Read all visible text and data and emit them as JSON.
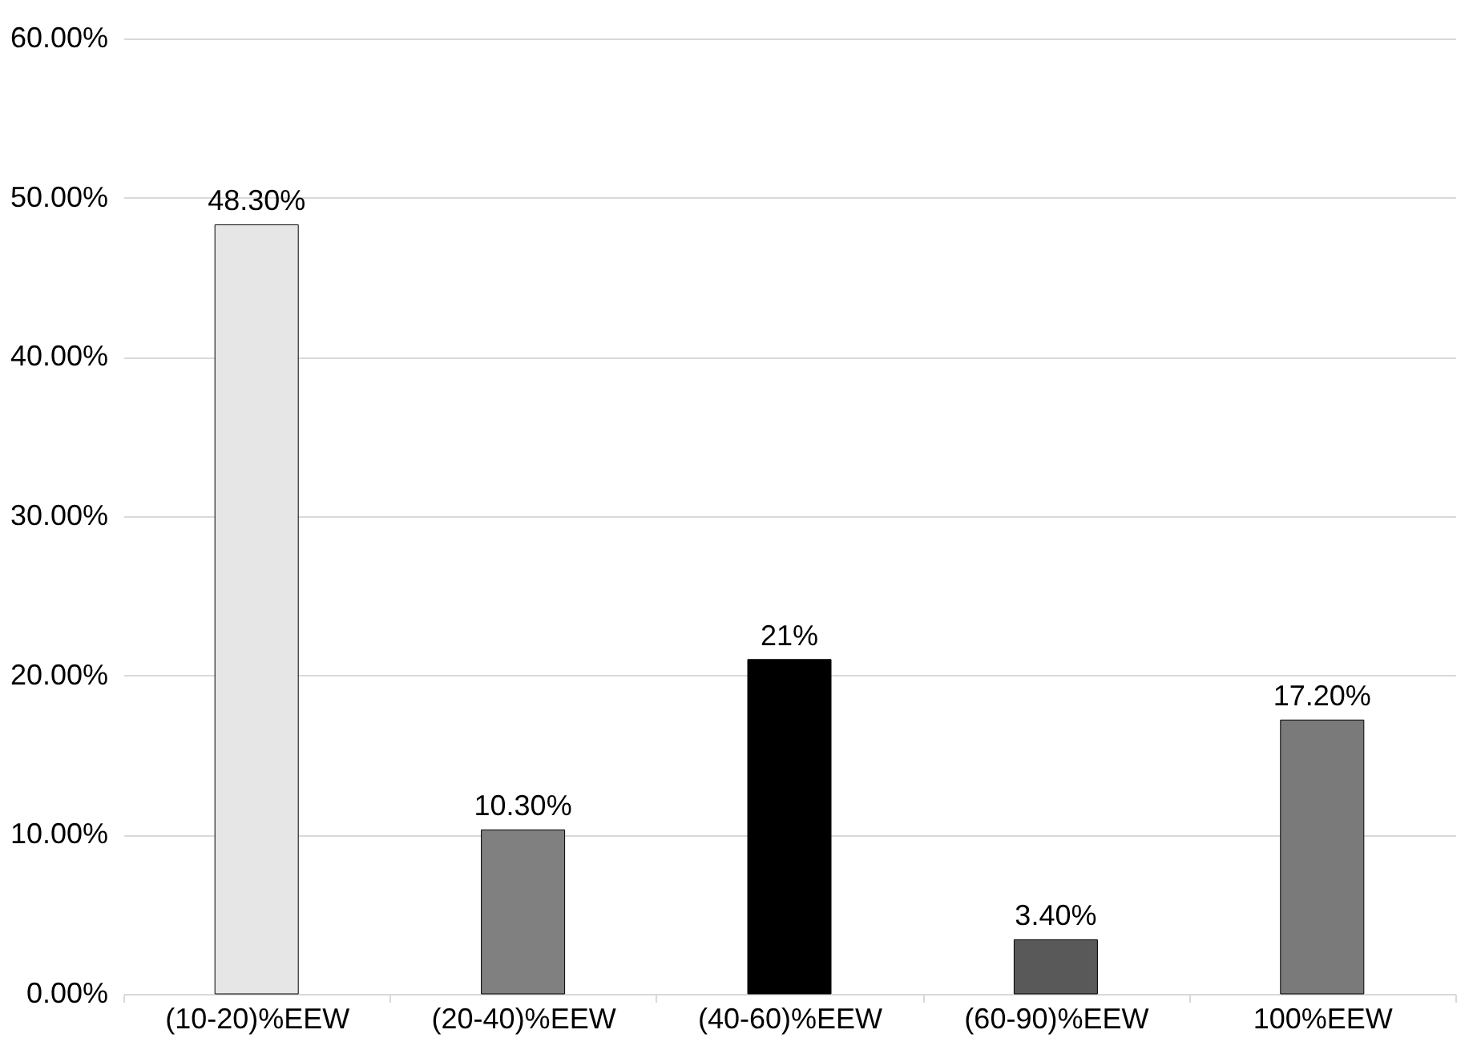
{
  "chart_data": {
    "type": "bar",
    "categories": [
      "(10-20)%EEW",
      "(20-40)%EEW",
      "(40-60)%EEW",
      "(60-90)%EEW",
      "100%EEW"
    ],
    "values": [
      48.3,
      10.3,
      21,
      3.4,
      17.2
    ],
    "colors": [
      "#e6e6e6",
      "#808080",
      "#000000",
      "#595959",
      "#7a7a7a"
    ],
    "value_labels": [
      "48.30%",
      "10.30%",
      "21%",
      "3.40%",
      "17.20%"
    ],
    "ylim": [
      0,
      60
    ],
    "yticks": [
      {
        "value": 0,
        "label": "0.00%"
      },
      {
        "value": 10,
        "label": "10.00%"
      },
      {
        "value": 20,
        "label": "20.00%"
      },
      {
        "value": 30,
        "label": "30.00%"
      },
      {
        "value": 40,
        "label": "40.00%"
      },
      {
        "value": 50,
        "label": "50.00%"
      },
      {
        "value": 60,
        "label": "60.00%"
      }
    ],
    "grid": "y"
  }
}
